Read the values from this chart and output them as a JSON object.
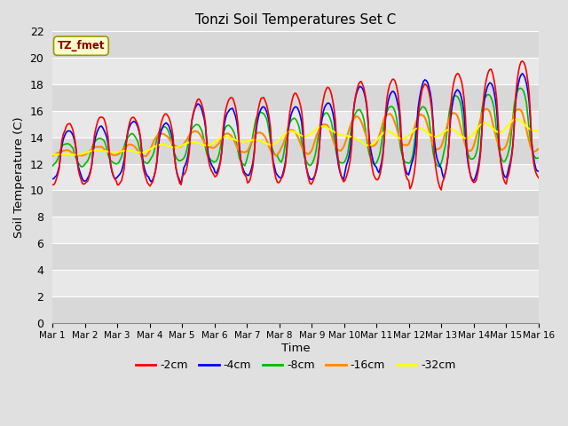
{
  "title": "Tonzi Soil Temperatures Set C",
  "xlabel": "Time",
  "ylabel": "Soil Temperature (C)",
  "legend_label": "TZ_fmet",
  "ylim": [
    0,
    22
  ],
  "yticks": [
    0,
    2,
    4,
    6,
    8,
    10,
    12,
    14,
    16,
    18,
    20,
    22
  ],
  "xtick_labels": [
    "Mar 1",
    "Mar 2",
    "Mar 3",
    "Mar 4",
    "Mar 5",
    "Mar 6",
    "Mar 7",
    "Mar 8",
    "Mar 9",
    "Mar 10",
    "Mar 11",
    "Mar 12",
    "Mar 13",
    "Mar 14",
    "Mar 15",
    "Mar 16"
  ],
  "colors": {
    "-2cm": "#ff0000",
    "-4cm": "#0000ff",
    "-8cm": "#00bb00",
    "-16cm": "#ff8800",
    "-32cm": "#ffff00"
  },
  "line_width": 1.2,
  "bg_color": "#e0e0e0",
  "plot_bg_color": "#e0e0e0",
  "grid_color": "#ffffff",
  "annotation_box_color": "#ffffcc",
  "annotation_text_color": "#880000",
  "annotation_box_edge": "#999900"
}
